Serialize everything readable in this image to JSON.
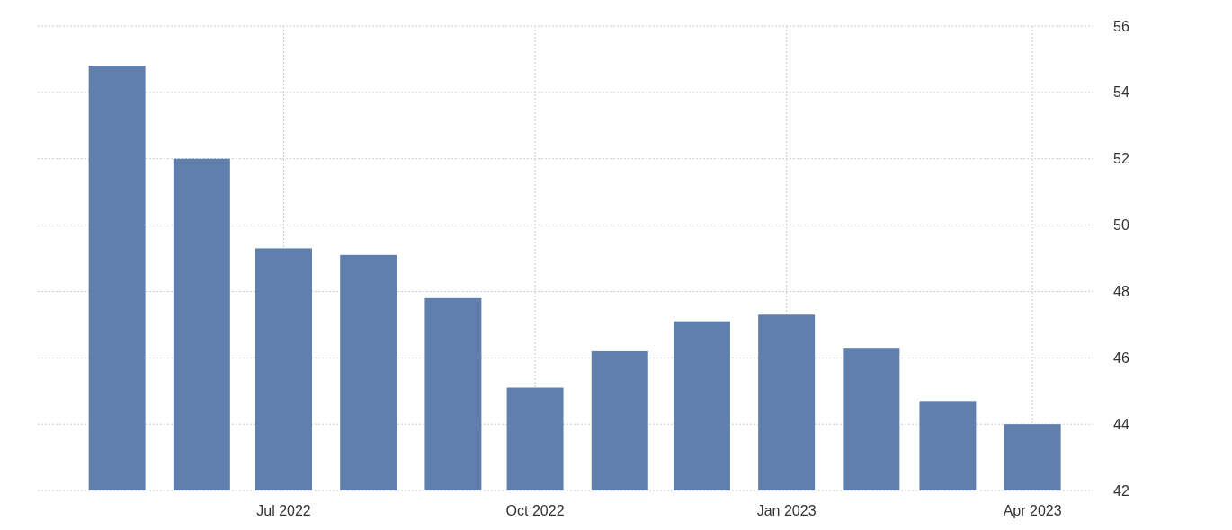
{
  "chart_data": {
    "type": "bar",
    "x": [
      "2022-05",
      "2022-06",
      "2022-07",
      "2022-08",
      "2022-09",
      "2022-10",
      "2022-11",
      "2022-12",
      "2023-01",
      "2023-02",
      "2023-03",
      "2023-04"
    ],
    "values": [
      54.8,
      52.0,
      49.3,
      49.1,
      47.8,
      45.1,
      46.2,
      47.1,
      47.3,
      46.3,
      44.7,
      44.0
    ],
    "color": "#5f7fad",
    "xlim": [
      "2022-04-02",
      "2023-04-23"
    ],
    "xticks": [
      {
        "value": "2022-07",
        "label": "Jul 2022"
      },
      {
        "value": "2022-10",
        "label": "Oct 2022"
      },
      {
        "value": "2023-01",
        "label": "Jan 2023"
      },
      {
        "value": "2023-04",
        "label": "Apr 2023"
      }
    ],
    "ylim": [
      42,
      56
    ],
    "yticks": [
      42,
      44,
      46,
      48,
      50,
      52,
      54,
      56
    ],
    "grid": true
  }
}
